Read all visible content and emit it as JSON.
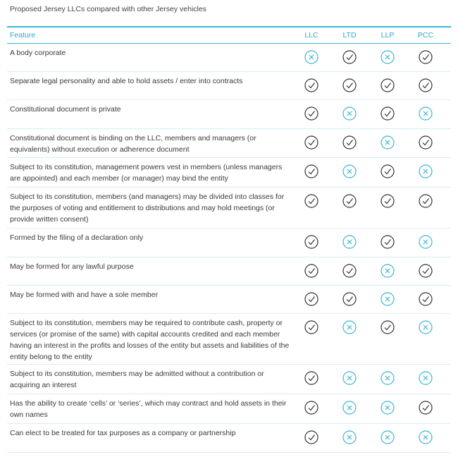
{
  "title": "Proposed Jersey LLCs compared with other Jersey vehicles",
  "colors": {
    "accent": "#3ab6cf",
    "check": "#333333",
    "cross": "#3ab6cf"
  },
  "header": {
    "feature": "Feature",
    "columns": [
      "LLC",
      "LTD",
      "LLP",
      "PCC"
    ]
  },
  "rows": [
    {
      "feature": "A body corporate",
      "values": [
        "no",
        "yes",
        "no",
        "yes"
      ]
    },
    {
      "feature": "Separate legal personality and able to hold assets / enter into contracts",
      "values": [
        "yes",
        "yes",
        "yes",
        "yes"
      ]
    },
    {
      "feature": "Constitutional document is private",
      "values": [
        "yes",
        "no",
        "yes",
        "no"
      ]
    },
    {
      "feature": "Constitutional document is binding on the LLC, members and managers (or equivalents) without execution or adherence document",
      "values": [
        "yes",
        "yes",
        "no",
        "yes"
      ]
    },
    {
      "feature": "Subject to its constitution, management powers vest in members (unless managers are appointed) and each member (or manager) may bind the entity",
      "values": [
        "yes",
        "no",
        "yes",
        "no"
      ]
    },
    {
      "feature": "Subject to its constitution, members (and managers) may be divided into classes for the purposes of voting and entitlement to distributions and may hold meetings (or provide written consent)",
      "values": [
        "yes",
        "yes",
        "yes",
        "yes"
      ]
    },
    {
      "feature": "Formed by the filing of a declaration only",
      "values": [
        "yes",
        "no",
        "yes",
        "no"
      ]
    },
    {
      "feature": "May be formed for any lawful purpose",
      "values": [
        "yes",
        "yes",
        "no",
        "yes"
      ]
    },
    {
      "feature": "May be formed with and have a sole member",
      "values": [
        "yes",
        "yes",
        "no",
        "yes"
      ]
    },
    {
      "feature": "Subject to its constitution, members may be required to contribute cash, property or services (or promise of the same) with capital accounts credited and each member having an interest in the profits and losses of the entity but assets and liabilities of the entity belong to the entity",
      "values": [
        "yes",
        "no",
        "yes",
        "no"
      ]
    },
    {
      "feature": "Subject to its constitution, members may be admitted without a contribution or acquiring an interest",
      "values": [
        "yes",
        "no",
        "no",
        "no"
      ]
    },
    {
      "feature": "Has the ability to create ‘cells’ or ‘series’, which may contract and hold assets in their own names",
      "values": [
        "yes",
        "no",
        "no",
        "yes"
      ]
    },
    {
      "feature": "Can elect to be treated for tax purposes as a company or partnership",
      "values": [
        "yes",
        "no",
        "no",
        "no"
      ]
    }
  ]
}
